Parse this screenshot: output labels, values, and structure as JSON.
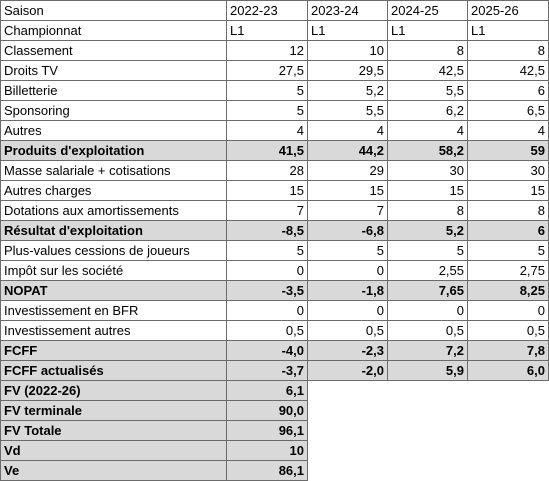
{
  "table": {
    "header": [
      "Saison",
      "2022-23",
      "2023-24",
      "2024-25",
      "2025-26"
    ],
    "rows": [
      {
        "cells": [
          "Championnat",
          "L1",
          "L1",
          "L1",
          "L1"
        ],
        "bold": false
      },
      {
        "cells": [
          "Classement",
          "12",
          "10",
          "8",
          "8"
        ],
        "bold": false
      },
      {
        "cells": [
          "Droits TV",
          "27,5",
          "29,5",
          "42,5",
          "42,5"
        ],
        "bold": false
      },
      {
        "cells": [
          "Billetterie",
          "5",
          "5,2",
          "5,5",
          "6"
        ],
        "bold": false
      },
      {
        "cells": [
          "Sponsoring",
          "5",
          "5,5",
          "6,2",
          "6,5"
        ],
        "bold": false
      },
      {
        "cells": [
          "Autres",
          "4",
          "4",
          "4",
          "4"
        ],
        "bold": false
      },
      {
        "cells": [
          "Produits d'exploitation",
          "41,5",
          "44,2",
          "58,2",
          "59"
        ],
        "bold": true
      },
      {
        "cells": [
          "Masse salariale + cotisations",
          "28",
          "29",
          "30",
          "30"
        ],
        "bold": false
      },
      {
        "cells": [
          "Autres charges",
          "15",
          "15",
          "15",
          "15"
        ],
        "bold": false
      },
      {
        "cells": [
          "Dotations aux amortissements",
          "7",
          "7",
          "8",
          "8"
        ],
        "bold": false
      },
      {
        "cells": [
          "Résultat d'exploitation",
          "-8,5",
          "-6,8",
          "5,2",
          "6"
        ],
        "bold": true
      },
      {
        "cells": [
          "Plus-values cessions de joueurs",
          "5",
          "5",
          "5",
          "5"
        ],
        "bold": false
      },
      {
        "cells": [
          "Impôt sur les société",
          "0",
          "0",
          "2,55",
          "2,75"
        ],
        "bold": false
      },
      {
        "cells": [
          "NOPAT",
          "-3,5",
          "-1,8",
          "7,65",
          "8,25"
        ],
        "bold": true
      },
      {
        "cells": [
          "Investissement en BFR",
          "0",
          "0",
          "0",
          "0"
        ],
        "bold": false
      },
      {
        "cells": [
          "Investissement autres",
          "0,5",
          "0,5",
          "0,5",
          "0,5"
        ],
        "bold": false
      },
      {
        "cells": [
          "FCFF",
          "-4,0",
          "-2,3",
          "7,2",
          "7,8"
        ],
        "bold": true
      },
      {
        "cells": [
          "FCFF actualisés",
          "-3,7",
          "-2,0",
          "5,9",
          "6,0"
        ],
        "bold": true
      },
      {
        "cells": [
          "FV (2022-26)",
          "6,1"
        ],
        "bold": true
      },
      {
        "cells": [
          "FV terminale",
          "90,0"
        ],
        "bold": true
      },
      {
        "cells": [
          "FV Totale",
          "96,1"
        ],
        "bold": true
      },
      {
        "cells": [
          "Vd",
          "10"
        ],
        "bold": true
      },
      {
        "cells": [
          "Ve",
          "86,1"
        ],
        "bold": true
      }
    ]
  }
}
